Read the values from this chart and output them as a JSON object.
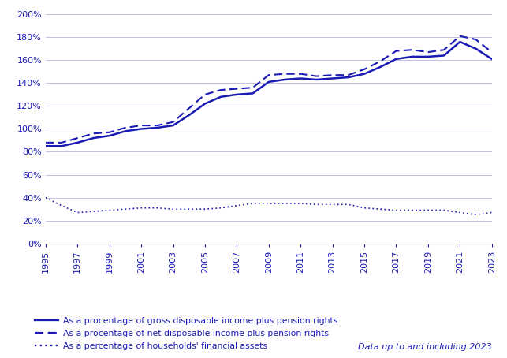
{
  "years": [
    1995,
    1996,
    1997,
    1998,
    1999,
    2000,
    2001,
    2002,
    2003,
    2004,
    2005,
    2006,
    2007,
    2008,
    2009,
    2010,
    2011,
    2012,
    2013,
    2014,
    2015,
    2016,
    2017,
    2018,
    2019,
    2020,
    2021,
    2022,
    2023
  ],
  "xtick_years": [
    1995,
    1997,
    1999,
    2001,
    2003,
    2005,
    2007,
    2009,
    2011,
    2013,
    2015,
    2017,
    2019,
    2021,
    2023
  ],
  "gross_disposable": [
    85,
    85,
    88,
    92,
    94,
    98,
    100,
    101,
    103,
    112,
    122,
    128,
    130,
    131,
    141,
    143,
    144,
    143,
    144,
    145,
    148,
    154,
    161,
    163,
    163,
    164,
    176,
    170,
    161
  ],
  "net_disposable": [
    88,
    88,
    92,
    96,
    97,
    101,
    103,
    103,
    106,
    118,
    130,
    134,
    135,
    136,
    147,
    148,
    148,
    146,
    147,
    147,
    152,
    159,
    168,
    169,
    167,
    169,
    181,
    178,
    167
  ],
  "financial_assets": [
    40,
    33,
    27,
    28,
    29,
    30,
    31,
    31,
    30,
    30,
    30,
    31,
    33,
    35,
    35,
    35,
    35,
    34,
    34,
    34,
    31,
    30,
    29,
    29,
    29,
    29,
    27,
    25,
    27
  ],
  "color": "#1a1ab5",
  "ylim": [
    0,
    200
  ],
  "yticks": [
    0,
    20,
    40,
    60,
    80,
    100,
    120,
    140,
    160,
    180,
    200
  ],
  "legend1": "As a procentage of gross disposable income plus pension rights",
  "legend2": "As a procentage of net disposable income plus pension rights",
  "legend3": "As a percentage of households' financial assets",
  "footnote": "Data up to and including 2023",
  "background_color": "#ffffff",
  "grid_color": "#c0c0e0",
  "text_color": "#1a1ab5"
}
